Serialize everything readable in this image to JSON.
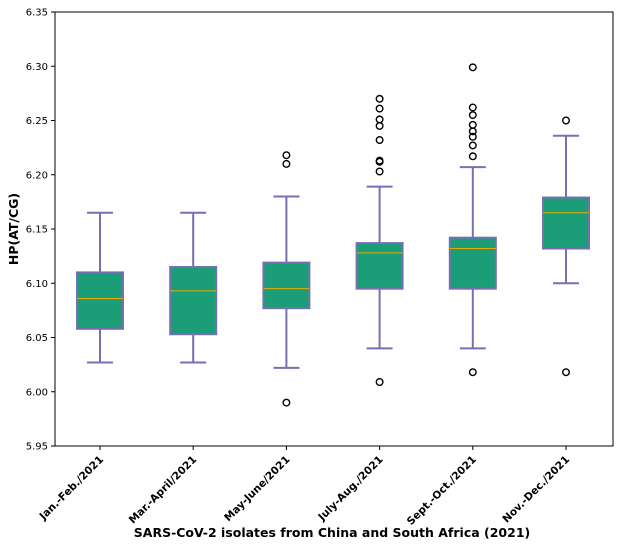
{
  "chart_data": {
    "type": "box",
    "title": "",
    "xlabel": "SARS-CoV-2 isolates from China and South Africa (2021)",
    "ylabel": "HP(AT/CG)",
    "ylim": [
      5.95,
      6.35
    ],
    "yticks": [
      "5.95",
      "6.00",
      "6.05",
      "6.10",
      "6.15",
      "6.20",
      "6.25",
      "6.30",
      "6.35"
    ],
    "categories": [
      "Jan.-Feb./2021",
      "Mar.-April/2021",
      "May-June/2021",
      "July-Aug./2021",
      "Sept.-Oct./2021",
      "Nov.-Dec./2021"
    ],
    "boxes": [
      {
        "whisker_low": 6.027,
        "q1": 6.058,
        "median": 6.086,
        "q3": 6.11,
        "whisker_high": 6.165,
        "outliers": []
      },
      {
        "whisker_low": 6.027,
        "q1": 6.053,
        "median": 6.093,
        "q3": 6.115,
        "whisker_high": 6.165,
        "outliers": []
      },
      {
        "whisker_low": 6.022,
        "q1": 6.077,
        "median": 6.095,
        "q3": 6.119,
        "whisker_high": 6.18,
        "outliers": [
          5.99,
          6.21,
          6.218
        ]
      },
      {
        "whisker_low": 6.04,
        "q1": 6.095,
        "median": 6.128,
        "q3": 6.137,
        "whisker_high": 6.189,
        "outliers": [
          6.009,
          6.203,
          6.212,
          6.213,
          6.232,
          6.245,
          6.251,
          6.261,
          6.27
        ]
      },
      {
        "whisker_low": 6.04,
        "q1": 6.095,
        "median": 6.132,
        "q3": 6.142,
        "whisker_high": 6.207,
        "outliers": [
          6.018,
          6.217,
          6.227,
          6.235,
          6.24,
          6.246,
          6.255,
          6.262,
          6.299
        ]
      },
      {
        "whisker_low": 6.1,
        "q1": 6.132,
        "median": 6.165,
        "q3": 6.179,
        "whisker_high": 6.236,
        "outliers": [
          6.018,
          6.25
        ]
      }
    ],
    "colors": {
      "box_fill": "#1b9e77",
      "box_edge": "#7570b3",
      "median": "#e6ab02",
      "outlier_edge": "#000000",
      "axis": "#000000"
    }
  }
}
